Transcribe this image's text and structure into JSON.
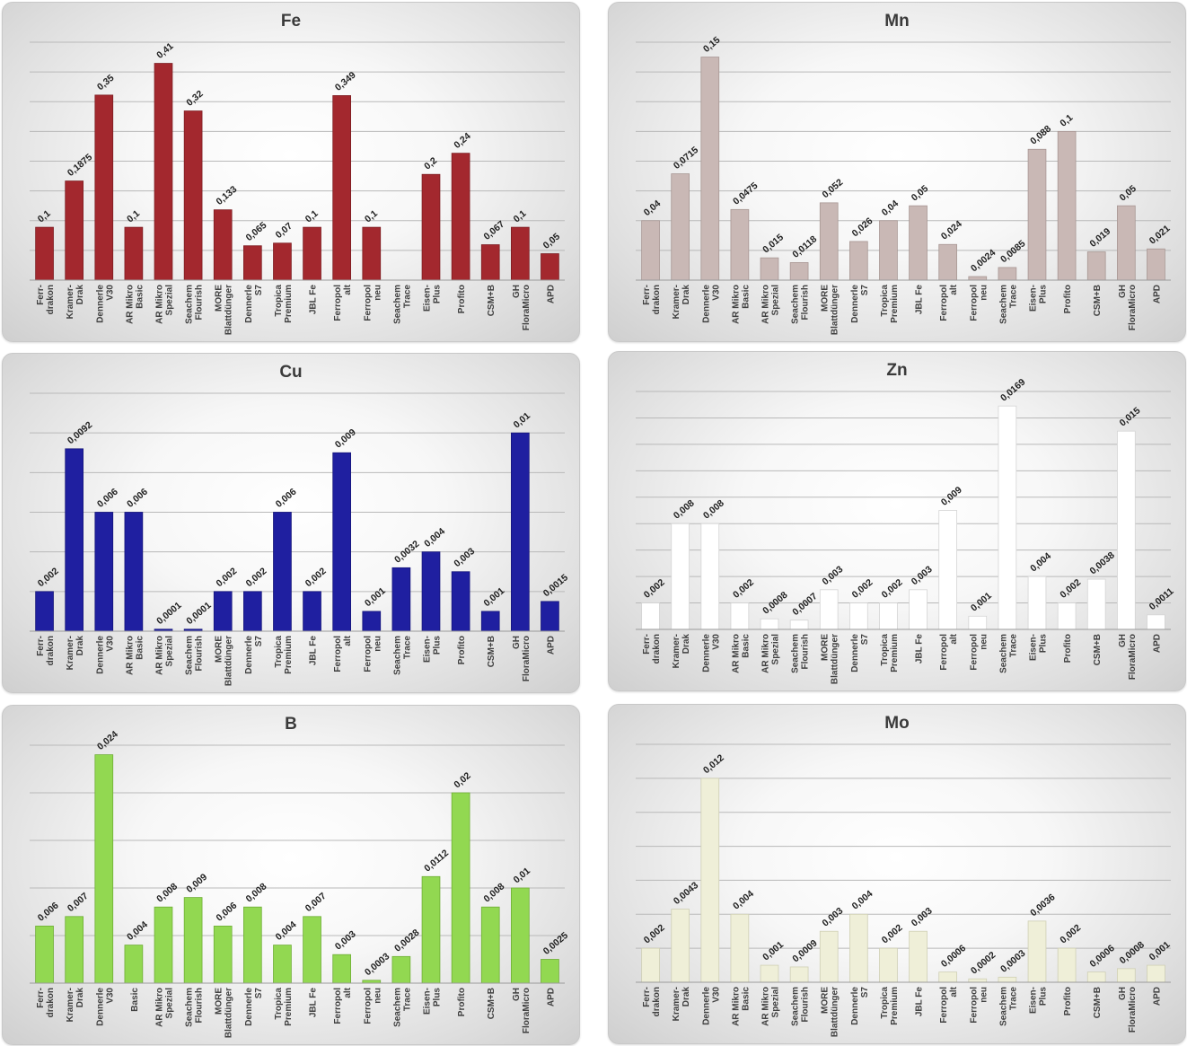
{
  "chart_data": [
    {
      "id": "fe",
      "type": "bar",
      "title": "Fe",
      "categories": [
        [
          "Ferr-",
          "drakon"
        ],
        [
          "Kramer-",
          "Drak"
        ],
        [
          "Dennerle",
          "V30"
        ],
        [
          "AR Mikro",
          "Basic"
        ],
        [
          "AR Mikro",
          "Spezial"
        ],
        [
          "Seachem",
          "Flourish"
        ],
        [
          "MORE",
          "Blattdünger"
        ],
        [
          "Dennerle",
          "S7"
        ],
        [
          "Tropica",
          "Premium"
        ],
        [
          "JBL Fe"
        ],
        [
          "Ferropol",
          "alt"
        ],
        [
          "Ferropol",
          "neu"
        ],
        [
          "Seachem",
          "Trace"
        ],
        [
          "Eisen-",
          "Plus"
        ],
        [
          "Profito"
        ],
        [
          "CSM+B"
        ],
        [
          "GH",
          "FloraMicro"
        ],
        [
          "APD"
        ]
      ],
      "values": [
        0.1,
        0.1875,
        0.35,
        0.1,
        0.41,
        0.32,
        0.133,
        0.065,
        0.07,
        0.1,
        0.349,
        0.1,
        null,
        0.2,
        0.24,
        0.067,
        0.1,
        0.05
      ],
      "labels": [
        "0,1",
        "0,1875",
        "0,35",
        "0,1",
        "0,41",
        "0,32",
        "0,133",
        "0,065",
        "0,07",
        "0,1",
        "0,349",
        "0,1",
        "",
        "0,2",
        "0,24",
        "0,067",
        "0,1",
        "0,05"
      ],
      "ylim": [
        0,
        0.45
      ],
      "gridlines": 8,
      "color": "#a3282e",
      "bar_stroke": "#7d1d22"
    },
    {
      "id": "mn",
      "type": "bar",
      "title": "Mn",
      "categories": [
        [
          "Ferr-",
          "drakon"
        ],
        [
          "Kramer-",
          "Drak"
        ],
        [
          "Dennerle",
          "V30"
        ],
        [
          "AR Mikro",
          "Basic"
        ],
        [
          "AR Mikro",
          "Spezial"
        ],
        [
          "Seachem",
          "Flourish"
        ],
        [
          "MORE",
          "Blattdünger"
        ],
        [
          "Dennerle",
          "S7"
        ],
        [
          "Tropica",
          "Premium"
        ],
        [
          "JBL Fe"
        ],
        [
          "Ferropol",
          "alt"
        ],
        [
          "Ferropol",
          "neu"
        ],
        [
          "Seachem",
          "Trace"
        ],
        [
          "Eisen-",
          "Plus"
        ],
        [
          "Profito"
        ],
        [
          "CSM+B"
        ],
        [
          "GH",
          "FloraMicro"
        ],
        [
          "APD"
        ]
      ],
      "values": [
        0.04,
        0.0715,
        0.15,
        0.0475,
        0.015,
        0.0118,
        0.052,
        0.026,
        0.04,
        0.05,
        0.024,
        0.0024,
        0.0085,
        0.088,
        0.1,
        0.019,
        0.05,
        0.021
      ],
      "labels": [
        "0,04",
        "0,0715",
        "0,15",
        "0,0475",
        "0,015",
        "0,0118",
        "0,052",
        "0,026",
        "0,04",
        "0,05",
        "0,024",
        "0,0024",
        "0,0085",
        "0,088",
        "0,1",
        "0,019",
        "0,05",
        "0,021"
      ],
      "ylim": [
        0,
        0.16
      ],
      "gridlines": 8,
      "color": "#c9b8b5",
      "bar_stroke": "#a89794"
    },
    {
      "id": "cu",
      "type": "bar",
      "title": "Cu",
      "categories": [
        [
          "Ferr-",
          "drakon"
        ],
        [
          "Kramer-",
          "Drak"
        ],
        [
          "Dennerle",
          "V30"
        ],
        [
          "AR Mikro",
          "Basic"
        ],
        [
          "AR Mikro",
          "Spezial"
        ],
        [
          "Seachem",
          "Flourish"
        ],
        [
          "MORE",
          "Blattdünger"
        ],
        [
          "Dennerle",
          "S7"
        ],
        [
          "Tropica",
          "Premium"
        ],
        [
          "JBL Fe"
        ],
        [
          "Ferropol",
          "alt"
        ],
        [
          "Ferropol",
          "neu"
        ],
        [
          "Seachem",
          "Trace"
        ],
        [
          "Eisen-",
          "Plus"
        ],
        [
          "Profito"
        ],
        [
          "CSM+B"
        ],
        [
          "GH",
          "FloraMicro"
        ],
        [
          "APD"
        ]
      ],
      "values": [
        0.002,
        0.0092,
        0.006,
        0.006,
        0.0001,
        0.0001,
        0.002,
        0.002,
        0.006,
        0.002,
        0.009,
        0.001,
        0.0032,
        0.004,
        0.003,
        0.001,
        0.01,
        0.0015
      ],
      "labels": [
        "0,002",
        "0,0092",
        "0,006",
        "0,006",
        "0,0001",
        "0,0001",
        "0,002",
        "0,002",
        "0,006",
        "0,002",
        "0,009",
        "0,001",
        "0,0032",
        "0,004",
        "0,003",
        "0,001",
        "0,01",
        "0,0015"
      ],
      "ylim": [
        0,
        0.012
      ],
      "gridlines": 6,
      "color": "#1f1fa0",
      "bar_stroke": "#16167a"
    },
    {
      "id": "zn",
      "type": "bar",
      "title": "Zn",
      "categories": [
        [
          "Ferr-",
          "drakon"
        ],
        [
          "Kramer-",
          "Drak"
        ],
        [
          "Dennerle",
          "V30"
        ],
        [
          "AR Mikro",
          "Basic"
        ],
        [
          "AR Mikro",
          "Spezial"
        ],
        [
          "Seachem",
          "Flourish"
        ],
        [
          "MORE",
          "Blattdünger"
        ],
        [
          "Dennerle",
          "S7"
        ],
        [
          "Tropica",
          "Premium"
        ],
        [
          "JBL Fe"
        ],
        [
          "Ferropol",
          "alt"
        ],
        [
          "Ferropol",
          "neu"
        ],
        [
          "Seachem",
          "Trace"
        ],
        [
          "Eisen-",
          "Plus"
        ],
        [
          "Profito"
        ],
        [
          "CSM+B"
        ],
        [
          "GH",
          "FloraMicro"
        ],
        [
          "APD"
        ]
      ],
      "values": [
        0.002,
        0.008,
        0.008,
        0.002,
        0.0008,
        0.0007,
        0.003,
        0.002,
        0.002,
        0.003,
        0.009,
        0.001,
        0.0169,
        0.004,
        0.002,
        0.0038,
        0.015,
        0.0011
      ],
      "labels": [
        "0,002",
        "0,008",
        "0,008",
        "0,002",
        "0,0008",
        "0,0007",
        "0,003",
        "0,002",
        "0,002",
        "0,003",
        "0,009",
        "0,001",
        "0,0169",
        "0,004",
        "0,002",
        "0,0038",
        "0,015",
        "0,0011"
      ],
      "ylim": [
        0,
        0.018
      ],
      "gridlines": 9,
      "color": "#ffffff",
      "bar_stroke": "#d4d4d4"
    },
    {
      "id": "b",
      "type": "bar",
      "title": "B",
      "categories": [
        [
          "Ferr-",
          "drakon"
        ],
        [
          "Kramer-",
          "Drak"
        ],
        [
          "Dennerle",
          "V30"
        ],
        [
          "Basic"
        ],
        [
          "AR Mikro",
          "Spezial"
        ],
        [
          "Seachem",
          "Flourish"
        ],
        [
          "MORE",
          "Blattdünger"
        ],
        [
          "Dennerle",
          "S7"
        ],
        [
          "Tropica",
          "Premium"
        ],
        [
          "JBL Fe"
        ],
        [
          "Ferropol",
          "alt"
        ],
        [
          "Ferropol",
          "neu"
        ],
        [
          "Seachem",
          "Trace"
        ],
        [
          "Eisen-",
          "Plus"
        ],
        [
          "Profito"
        ],
        [
          "CSM+B"
        ],
        [
          "GH",
          "FloraMicro"
        ],
        [
          "APD"
        ]
      ],
      "values": [
        0.006,
        0.007,
        0.024,
        0.004,
        0.008,
        0.009,
        0.006,
        0.008,
        0.004,
        0.007,
        0.003,
        0.0003,
        0.0028,
        0.0112,
        0.02,
        0.008,
        0.01,
        0.0025
      ],
      "labels": [
        "0,006",
        "0,007",
        "0,024",
        "0,004",
        "0,008",
        "0,009",
        "0,006",
        "0,008",
        "0,004",
        "0,007",
        "0,003",
        "0,0003",
        "0,0028",
        "0,0112",
        "0,02",
        "0,008",
        "0,01",
        "0,0025"
      ],
      "ylim": [
        0,
        0.025
      ],
      "gridlines": 5,
      "color": "#92d851",
      "bar_stroke": "#6fae36"
    },
    {
      "id": "mo",
      "type": "bar",
      "title": "Mo",
      "categories": [
        [
          "Ferr-",
          "drakon"
        ],
        [
          "Kramer-",
          "Drak"
        ],
        [
          "Dennerle",
          "V30"
        ],
        [
          "AR Mikro",
          "Basic"
        ],
        [
          "AR Mikro",
          "Spezial"
        ],
        [
          "Seachem",
          "Flourish"
        ],
        [
          "MORE",
          "Blattdünger"
        ],
        [
          "Dennerle",
          "S7"
        ],
        [
          "Tropica",
          "Premium"
        ],
        [
          "JBL Fe"
        ],
        [
          "Ferropol",
          "alt"
        ],
        [
          "Ferropol",
          "neu"
        ],
        [
          "Seachem",
          "Trace"
        ],
        [
          "Eisen-",
          "Plus"
        ],
        [
          "Profito"
        ],
        [
          "CSM+B"
        ],
        [
          "GH",
          "FloraMicro"
        ],
        [
          "APD"
        ]
      ],
      "values": [
        0.002,
        0.0043,
        0.012,
        0.004,
        0.001,
        0.0009,
        0.003,
        0.004,
        0.002,
        0.003,
        0.0006,
        0.0002,
        0.0003,
        0.0036,
        0.002,
        0.0006,
        0.0008,
        0.001
      ],
      "labels": [
        "0,002",
        "0,0043",
        "0,012",
        "0,004",
        "0,001",
        "0,0009",
        "0,003",
        "0,004",
        "0,002",
        "0,003",
        "0,0006",
        "0,0002",
        "0,0003",
        "0,0036",
        "0,002",
        "0,0006",
        "0,0008",
        "0,001"
      ],
      "ylim": [
        0,
        0.014
      ],
      "gridlines": 7,
      "color": "#efefd8",
      "bar_stroke": "#cfcfb4"
    }
  ]
}
